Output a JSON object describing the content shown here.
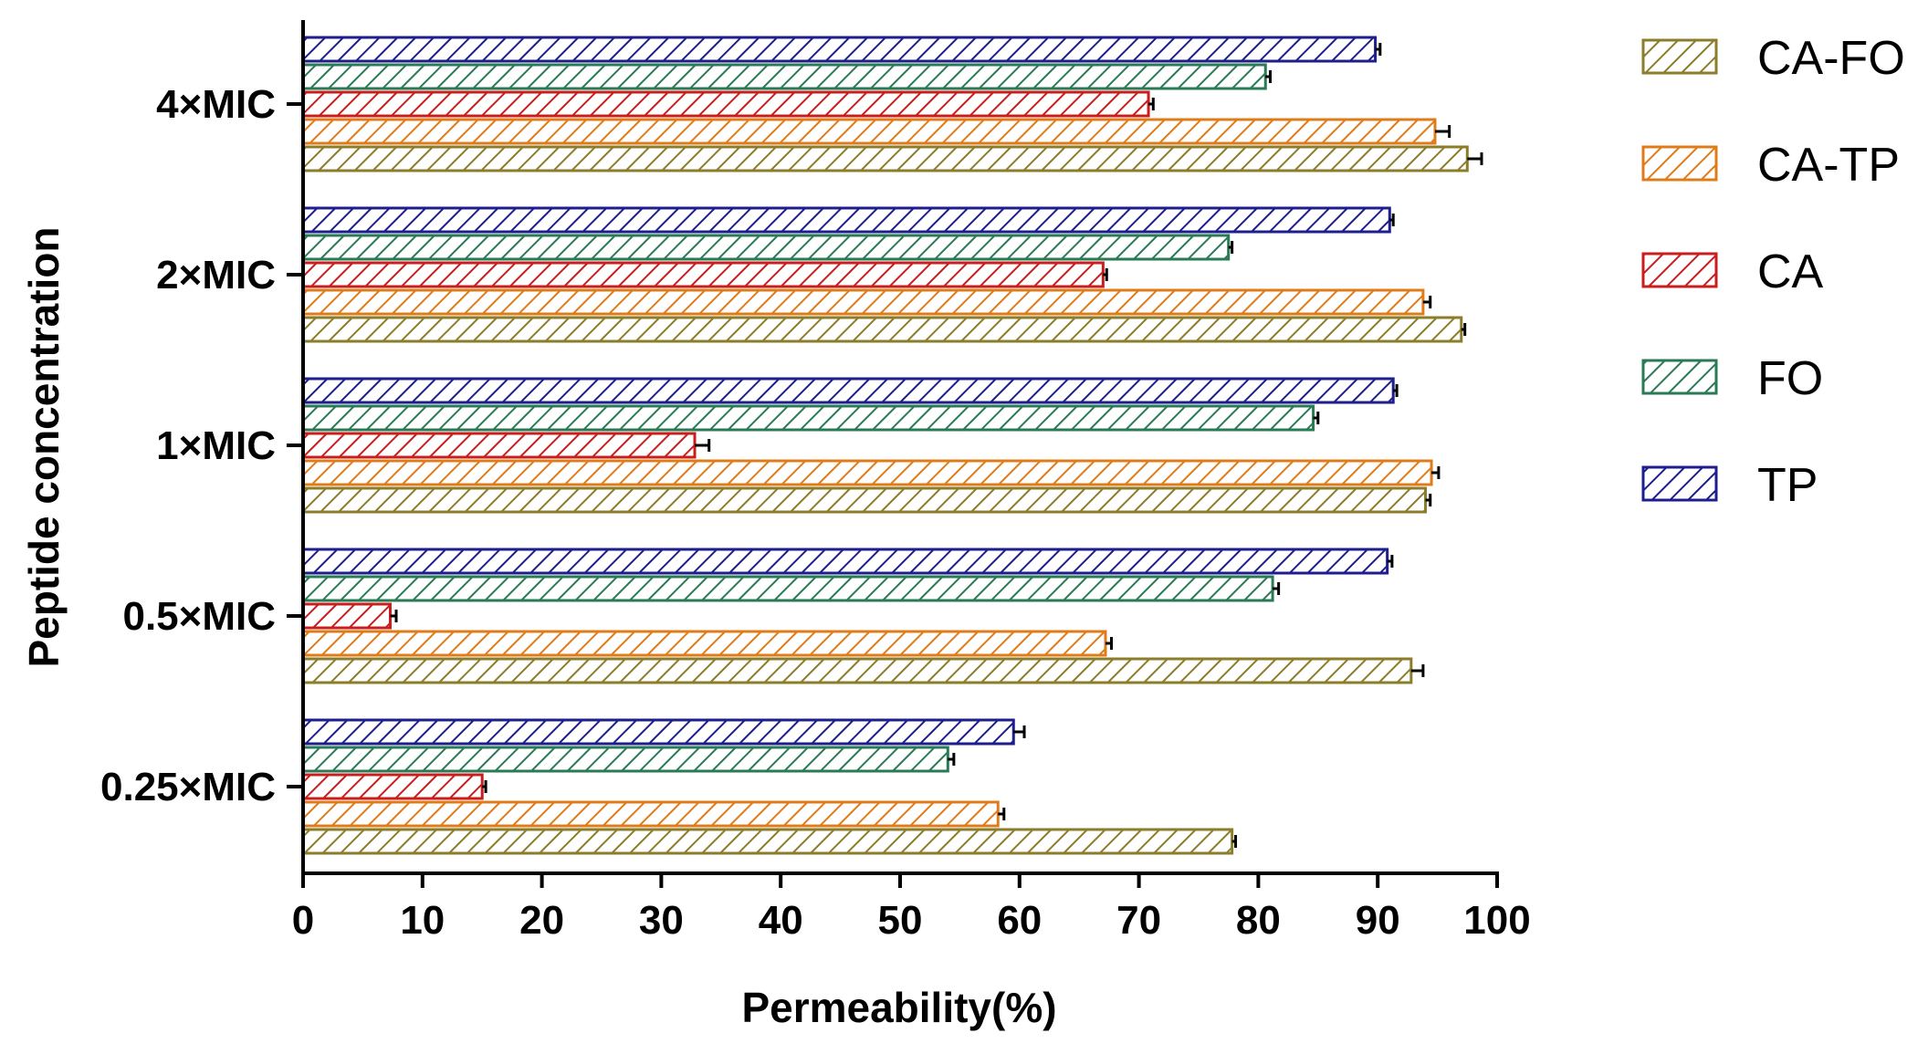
{
  "chart_data": {
    "type": "bar",
    "orientation": "horizontal",
    "title": "",
    "xlabel": "Permeability(%)",
    "ylabel": "Peptide concentration",
    "xlim": [
      0,
      100
    ],
    "xticks": [
      "0",
      "10",
      "20",
      "30",
      "40",
      "50",
      "60",
      "70",
      "80",
      "90",
      "100"
    ],
    "categories": [
      "0.25×MIC",
      "0.5×MIC",
      "1×MIC",
      "2×MIC",
      "4×MIC"
    ],
    "series": [
      {
        "name": "CA-FO",
        "color": "#8B7D2A",
        "values": [
          77.8,
          92.8,
          94.0,
          97.0,
          97.5
        ],
        "errors": [
          0.3,
          1.0,
          0.4,
          0.3,
          1.2
        ]
      },
      {
        "name": "CA-TP",
        "color": "#E07B1A",
        "values": [
          58.2,
          67.2,
          94.5,
          93.8,
          94.8
        ],
        "errors": [
          0.5,
          0.5,
          0.6,
          0.6,
          1.2
        ]
      },
      {
        "name": "CA",
        "color": "#C81E1E",
        "values": [
          15.0,
          7.3,
          32.8,
          67.0,
          70.8
        ],
        "errors": [
          0.3,
          0.5,
          1.2,
          0.3,
          0.4
        ]
      },
      {
        "name": "FO",
        "color": "#2A7A55",
        "values": [
          54.0,
          81.2,
          84.6,
          77.5,
          80.6
        ],
        "errors": [
          0.5,
          0.5,
          0.4,
          0.3,
          0.4
        ]
      },
      {
        "name": "TP",
        "color": "#1E1E8C",
        "values": [
          59.5,
          90.8,
          91.3,
          91.0,
          89.8
        ],
        "errors": [
          0.9,
          0.4,
          0.3,
          0.3,
          0.4
        ]
      }
    ],
    "legend": {
      "position": "right",
      "order": [
        "CA-FO",
        "CA-TP",
        "CA",
        "FO",
        "TP"
      ]
    },
    "grid": false,
    "bar_fill": "diagonal-hatch",
    "error_bars": true
  }
}
